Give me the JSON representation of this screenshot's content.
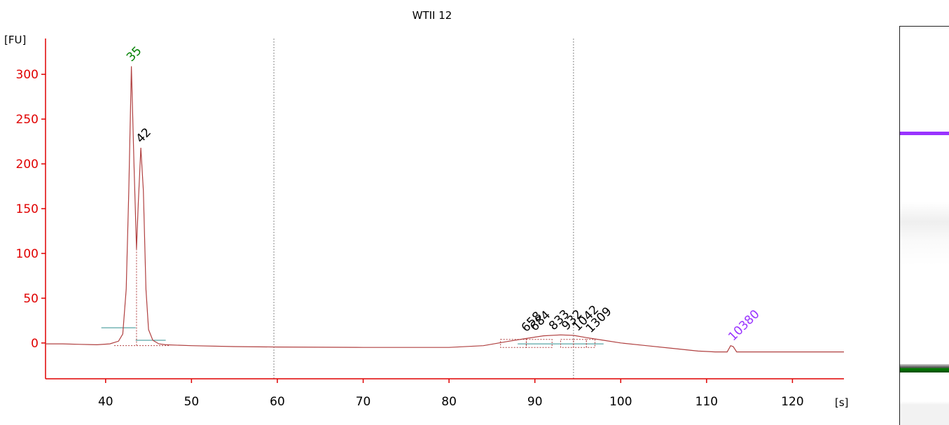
{
  "chart_data": {
    "type": "line",
    "title": "WTII 12",
    "ylabel": "[FU]",
    "xlabel": "[s]",
    "xlim": [
      33,
      126
    ],
    "ylim": [
      -40,
      340
    ],
    "x_ticks": [
      40,
      50,
      60,
      70,
      80,
      90,
      100,
      110,
      120
    ],
    "y_ticks": [
      0,
      50,
      100,
      150,
      200,
      250,
      300
    ],
    "grid": false,
    "colors": {
      "axis": "#e00000",
      "trace": "#b04040",
      "marker_green": "#008000",
      "marker_purple": "#9933ff",
      "label": "#000000",
      "baseline": "#2f8f8f"
    },
    "vertical_lines": [
      59.6,
      94.5
    ],
    "series": [
      {
        "x": [
          33,
          35,
          37,
          39,
          40.5,
          41.5,
          42,
          42.4,
          42.7,
          43.0,
          43.3,
          43.6,
          43.8,
          44.1,
          44.4,
          44.7,
          45.0,
          45.5,
          46.2,
          47,
          50,
          55,
          60,
          70,
          80,
          84,
          87,
          89,
          91,
          93,
          94.5,
          96,
          98,
          100,
          103,
          106,
          109,
          111,
          112.4,
          112.8,
          113.1,
          113.5,
          114,
          116,
          120,
          126
        ],
        "y": [
          -1,
          -1,
          -1.5,
          -2,
          -1,
          2,
          10,
          60,
          170,
          309,
          200,
          105,
          155,
          218,
          170,
          60,
          15,
          3,
          -1,
          -2,
          -3,
          -4,
          -4.5,
          -5,
          -5,
          -3,
          2,
          5,
          8,
          9,
          8.5,
          6,
          3,
          0,
          -3,
          -6,
          -9,
          -10,
          -10,
          -3,
          -4,
          -10,
          -10,
          -10,
          -10,
          -10
        ]
      }
    ],
    "peak_labels": [
      {
        "label": "35",
        "x": 43.0,
        "y": 309,
        "color": "green"
      },
      {
        "label": "42",
        "x": 44.1,
        "y": 218,
        "color": "black"
      },
      {
        "label": "658",
        "x": 89.0,
        "y": 7,
        "color": "black"
      },
      {
        "label": "684",
        "x": 90.0,
        "y": 8,
        "color": "black"
      },
      {
        "label": "833",
        "x": 92.2,
        "y": 9,
        "color": "black"
      },
      {
        "label": "932",
        "x": 93.7,
        "y": 9,
        "color": "black"
      },
      {
        "label": "1042",
        "x": 95.0,
        "y": 8,
        "color": "black"
      },
      {
        "label": "1309",
        "x": 96.5,
        "y": 6,
        "color": "black"
      },
      {
        "label": "10380",
        "x": 113.1,
        "y": -3,
        "color": "purple"
      }
    ],
    "gel": {
      "upper_marker_position": 0.267,
      "lower_marker_position": 0.857,
      "upper_marker_color": "#9933ff",
      "lower_marker_color": "#008000"
    }
  }
}
